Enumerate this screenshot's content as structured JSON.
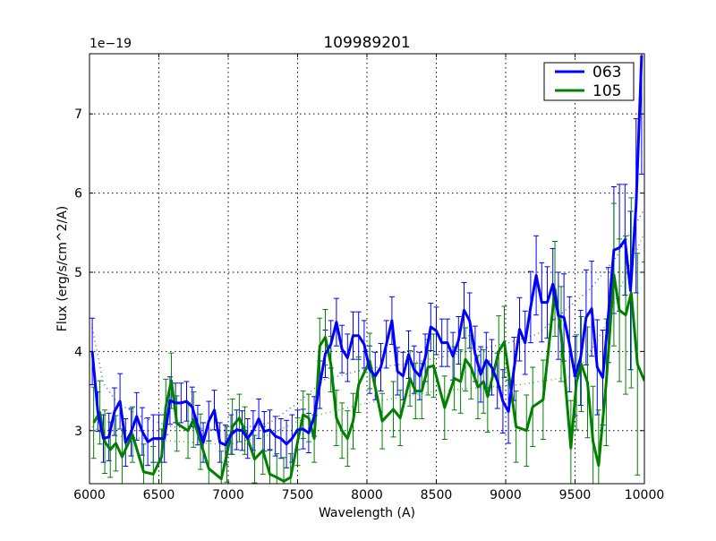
{
  "chart_data": {
    "type": "line",
    "title": "109989201",
    "xlabel": "Wavelength (A)",
    "ylabel": "Flux (erg/s/cm^2/A)",
    "y_offset_label": "1e−19",
    "xlim": [
      6000,
      10000
    ],
    "ylim": [
      2.33,
      7.76
    ],
    "xticks": [
      6000,
      6500,
      7000,
      7500,
      8000,
      8500,
      9000,
      9500,
      10000
    ],
    "yticks": [
      3,
      4,
      5,
      6,
      7
    ],
    "grid": true,
    "legend_position": "top-right",
    "series": [
      {
        "name": "063",
        "color": "#0000ff",
        "points_x_y_err": [
          [
            6020,
            4.0,
            0.42
          ],
          [
            6060,
            3.24,
            0.25
          ],
          [
            6100,
            2.9,
            0.3
          ],
          [
            6140,
            2.92,
            0.3
          ],
          [
            6180,
            3.24,
            0.3
          ],
          [
            6220,
            3.37,
            0.35
          ],
          [
            6260,
            2.85,
            0.3
          ],
          [
            6300,
            2.98,
            0.3
          ],
          [
            6340,
            3.18,
            0.3
          ],
          [
            6380,
            2.99,
            0.3
          ],
          [
            6420,
            2.86,
            0.3
          ],
          [
            6460,
            2.9,
            0.3
          ],
          [
            6500,
            2.9,
            0.3
          ],
          [
            6540,
            2.9,
            0.3
          ],
          [
            6580,
            3.38,
            0.3
          ],
          [
            6620,
            3.35,
            0.25
          ],
          [
            6660,
            3.35,
            0.25
          ],
          [
            6700,
            3.37,
            0.25
          ],
          [
            6740,
            3.3,
            0.25
          ],
          [
            6780,
            3.07,
            0.25
          ],
          [
            6820,
            2.85,
            0.25
          ],
          [
            6860,
            3.12,
            0.25
          ],
          [
            6900,
            3.26,
            0.25
          ],
          [
            6940,
            2.85,
            0.25
          ],
          [
            6980,
            2.82,
            0.25
          ],
          [
            7020,
            2.95,
            0.25
          ],
          [
            7060,
            3.01,
            0.25
          ],
          [
            7100,
            3.0,
            0.25
          ],
          [
            7140,
            2.9,
            0.25
          ],
          [
            7180,
            3.0,
            0.25
          ],
          [
            7220,
            3.15,
            0.25
          ],
          [
            7260,
            2.99,
            0.25
          ],
          [
            7300,
            3.01,
            0.25
          ],
          [
            7340,
            2.93,
            0.25
          ],
          [
            7380,
            2.9,
            0.25
          ],
          [
            7420,
            2.83,
            0.3
          ],
          [
            7460,
            2.9,
            0.3
          ],
          [
            7500,
            3.01,
            0.25
          ],
          [
            7540,
            3.02,
            0.25
          ],
          [
            7580,
            2.97,
            0.25
          ],
          [
            7620,
            3.18,
            0.25
          ],
          [
            7660,
            3.58,
            0.3
          ],
          [
            7700,
            3.97,
            0.3
          ],
          [
            7740,
            4.09,
            0.3
          ],
          [
            7780,
            4.37,
            0.3
          ],
          [
            7820,
            4.03,
            0.3
          ],
          [
            7860,
            3.92,
            0.3
          ],
          [
            7900,
            4.2,
            0.3
          ],
          [
            7940,
            4.2,
            0.3
          ],
          [
            7980,
            4.09,
            0.3
          ],
          [
            8020,
            3.77,
            0.3
          ],
          [
            8060,
            3.69,
            0.3
          ],
          [
            8100,
            3.8,
            0.3
          ],
          [
            8140,
            4.09,
            0.3
          ],
          [
            8180,
            4.39,
            0.3
          ],
          [
            8220,
            3.75,
            0.3
          ],
          [
            8260,
            3.69,
            0.3
          ],
          [
            8300,
            3.96,
            0.3
          ],
          [
            8340,
            3.77,
            0.3
          ],
          [
            8380,
            3.69,
            0.3
          ],
          [
            8420,
            3.92,
            0.3
          ],
          [
            8460,
            4.31,
            0.3
          ],
          [
            8500,
            4.26,
            0.3
          ],
          [
            8540,
            4.11,
            0.3
          ],
          [
            8580,
            4.11,
            0.3
          ],
          [
            8620,
            3.94,
            0.3
          ],
          [
            8660,
            4.14,
            0.3
          ],
          [
            8700,
            4.52,
            0.35
          ],
          [
            8740,
            4.39,
            0.35
          ],
          [
            8780,
            3.97,
            0.35
          ],
          [
            8820,
            3.71,
            0.35
          ],
          [
            8860,
            3.89,
            0.35
          ],
          [
            8900,
            3.8,
            0.35
          ],
          [
            8940,
            3.63,
            0.35
          ],
          [
            8980,
            3.37,
            0.4
          ],
          [
            9020,
            3.24,
            0.4
          ],
          [
            9060,
            3.78,
            0.4
          ],
          [
            9100,
            4.28,
            0.4
          ],
          [
            9140,
            4.11,
            0.4
          ],
          [
            9180,
            4.56,
            0.45
          ],
          [
            9220,
            4.96,
            0.5
          ],
          [
            9260,
            4.62,
            0.5
          ],
          [
            9300,
            4.62,
            0.45
          ],
          [
            9340,
            4.85,
            0.45
          ],
          [
            9380,
            4.45,
            0.55
          ],
          [
            9420,
            4.43,
            0.55
          ],
          [
            9460,
            4.09,
            0.6
          ],
          [
            9500,
            3.69,
            0.5
          ],
          [
            9540,
            3.92,
            0.6
          ],
          [
            9580,
            4.43,
            0.6
          ],
          [
            9620,
            4.54,
            0.6
          ],
          [
            9660,
            3.8,
            0.6
          ],
          [
            9700,
            3.67,
            0.6
          ],
          [
            9740,
            4.46,
            0.6
          ],
          [
            9780,
            5.28,
            0.8
          ],
          [
            9820,
            5.31,
            0.8
          ],
          [
            9860,
            5.41,
            0.7
          ],
          [
            9900,
            4.77,
            1.0
          ],
          [
            9940,
            5.84,
            1.1
          ],
          [
            9980,
            7.74,
            1.5
          ]
        ],
        "continuum_fit": [
          [
            6020,
            4.3
          ],
          [
            6100,
            3.6
          ],
          [
            6200,
            3.35
          ],
          [
            6400,
            3.15
          ],
          [
            6600,
            3.05
          ],
          [
            7000,
            3.0
          ],
          [
            7300,
            3.1
          ],
          [
            7500,
            3.35
          ],
          [
            7700,
            3.65
          ],
          [
            8000,
            3.78
          ],
          [
            8300,
            3.85
          ],
          [
            8600,
            3.95
          ],
          [
            9000,
            4.1
          ],
          [
            9230,
            4.22
          ],
          [
            9610,
            4.79
          ],
          [
            9800,
            5.2
          ],
          [
            10000,
            5.8
          ]
        ]
      },
      {
        "name": "105",
        "color": "#008000",
        "points_x_y_err": [
          [
            6030,
            3.1,
            0.45
          ],
          [
            6075,
            3.23,
            0.4
          ],
          [
            6110,
            2.86,
            0.4
          ],
          [
            6150,
            2.76,
            0.35
          ],
          [
            6190,
            2.84,
            0.35
          ],
          [
            6235,
            2.67,
            0.35
          ],
          [
            6310,
            2.95,
            0.35
          ],
          [
            6390,
            2.48,
            0.35
          ],
          [
            6460,
            2.45,
            0.35
          ],
          [
            6520,
            2.67,
            0.35
          ],
          [
            6550,
            3.3,
            0.35
          ],
          [
            6590,
            3.63,
            0.35
          ],
          [
            6630,
            3.09,
            0.35
          ],
          [
            6710,
            3.0,
            0.35
          ],
          [
            6750,
            3.14,
            0.35
          ],
          [
            6800,
            2.86,
            0.35
          ],
          [
            6860,
            2.52,
            0.35
          ],
          [
            6950,
            2.39,
            0.35
          ],
          [
            6990,
            2.7,
            0.35
          ],
          [
            7030,
            3.05,
            0.35
          ],
          [
            7080,
            3.16,
            0.3
          ],
          [
            7120,
            3.0,
            0.3
          ],
          [
            7190,
            2.64,
            0.3
          ],
          [
            7250,
            2.75,
            0.3
          ],
          [
            7300,
            2.45,
            0.3
          ],
          [
            7350,
            2.41,
            0.3
          ],
          [
            7400,
            2.36,
            0.3
          ],
          [
            7450,
            2.41,
            0.3
          ],
          [
            7500,
            2.86,
            0.3
          ],
          [
            7540,
            3.2,
            0.3
          ],
          [
            7580,
            3.16,
            0.3
          ],
          [
            7620,
            2.9,
            0.3
          ],
          [
            7660,
            4.07,
            0.35
          ],
          [
            7700,
            4.18,
            0.35
          ],
          [
            7740,
            3.84,
            0.35
          ],
          [
            7780,
            3.16,
            0.35
          ],
          [
            7820,
            3.0,
            0.35
          ],
          [
            7860,
            2.9,
            0.35
          ],
          [
            7900,
            3.12,
            0.35
          ],
          [
            7940,
            3.58,
            0.35
          ],
          [
            8020,
            3.88,
            0.35
          ],
          [
            8110,
            3.12,
            0.35
          ],
          [
            8190,
            3.27,
            0.35
          ],
          [
            8240,
            3.16,
            0.35
          ],
          [
            8310,
            3.66,
            0.35
          ],
          [
            8350,
            3.5,
            0.35
          ],
          [
            8395,
            3.5,
            0.35
          ],
          [
            8440,
            3.8,
            0.35
          ],
          [
            8480,
            3.82,
            0.4
          ],
          [
            8560,
            3.29,
            0.4
          ],
          [
            8630,
            3.66,
            0.4
          ],
          [
            8675,
            3.62,
            0.4
          ],
          [
            8710,
            3.9,
            0.4
          ],
          [
            8750,
            3.8,
            0.4
          ],
          [
            8800,
            3.55,
            0.4
          ],
          [
            8840,
            3.62,
            0.4
          ],
          [
            8870,
            3.43,
            0.45
          ],
          [
            8950,
            4.0,
            0.45
          ],
          [
            8990,
            4.12,
            0.45
          ],
          [
            9075,
            3.05,
            0.45
          ],
          [
            9150,
            3.0,
            0.45
          ],
          [
            9195,
            3.3,
            0.5
          ],
          [
            9270,
            3.39,
            0.5
          ],
          [
            9355,
            4.79,
            0.6
          ],
          [
            9400,
            4.22,
            0.6
          ],
          [
            9470,
            2.78,
            0.6
          ],
          [
            9510,
            3.61,
            0.6
          ],
          [
            9545,
            3.84,
            0.6
          ],
          [
            9590,
            3.61,
            0.7
          ],
          [
            9630,
            2.86,
            0.7
          ],
          [
            9670,
            2.56,
            0.7
          ],
          [
            9725,
            3.61,
            0.8
          ],
          [
            9780,
            4.97,
            0.9
          ],
          [
            9820,
            4.52,
            0.9
          ],
          [
            9865,
            4.46,
            1.0
          ],
          [
            9905,
            4.74,
            1.2
          ],
          [
            9950,
            3.84,
            1.4
          ],
          [
            10000,
            3.63,
            1.5
          ]
        ],
        "continuum_fit": [
          [
            6020,
            3.05
          ],
          [
            6100,
            2.95
          ],
          [
            6500,
            2.88
          ],
          [
            7000,
            2.82
          ],
          [
            7300,
            2.95
          ],
          [
            7500,
            3.12
          ],
          [
            7700,
            3.22
          ],
          [
            8000,
            3.35
          ],
          [
            8500,
            3.5
          ],
          [
            9100,
            3.58
          ],
          [
            9500,
            3.69
          ],
          [
            9700,
            4.26
          ],
          [
            9850,
            4.9
          ],
          [
            10000,
            5.5
          ]
        ]
      }
    ]
  }
}
